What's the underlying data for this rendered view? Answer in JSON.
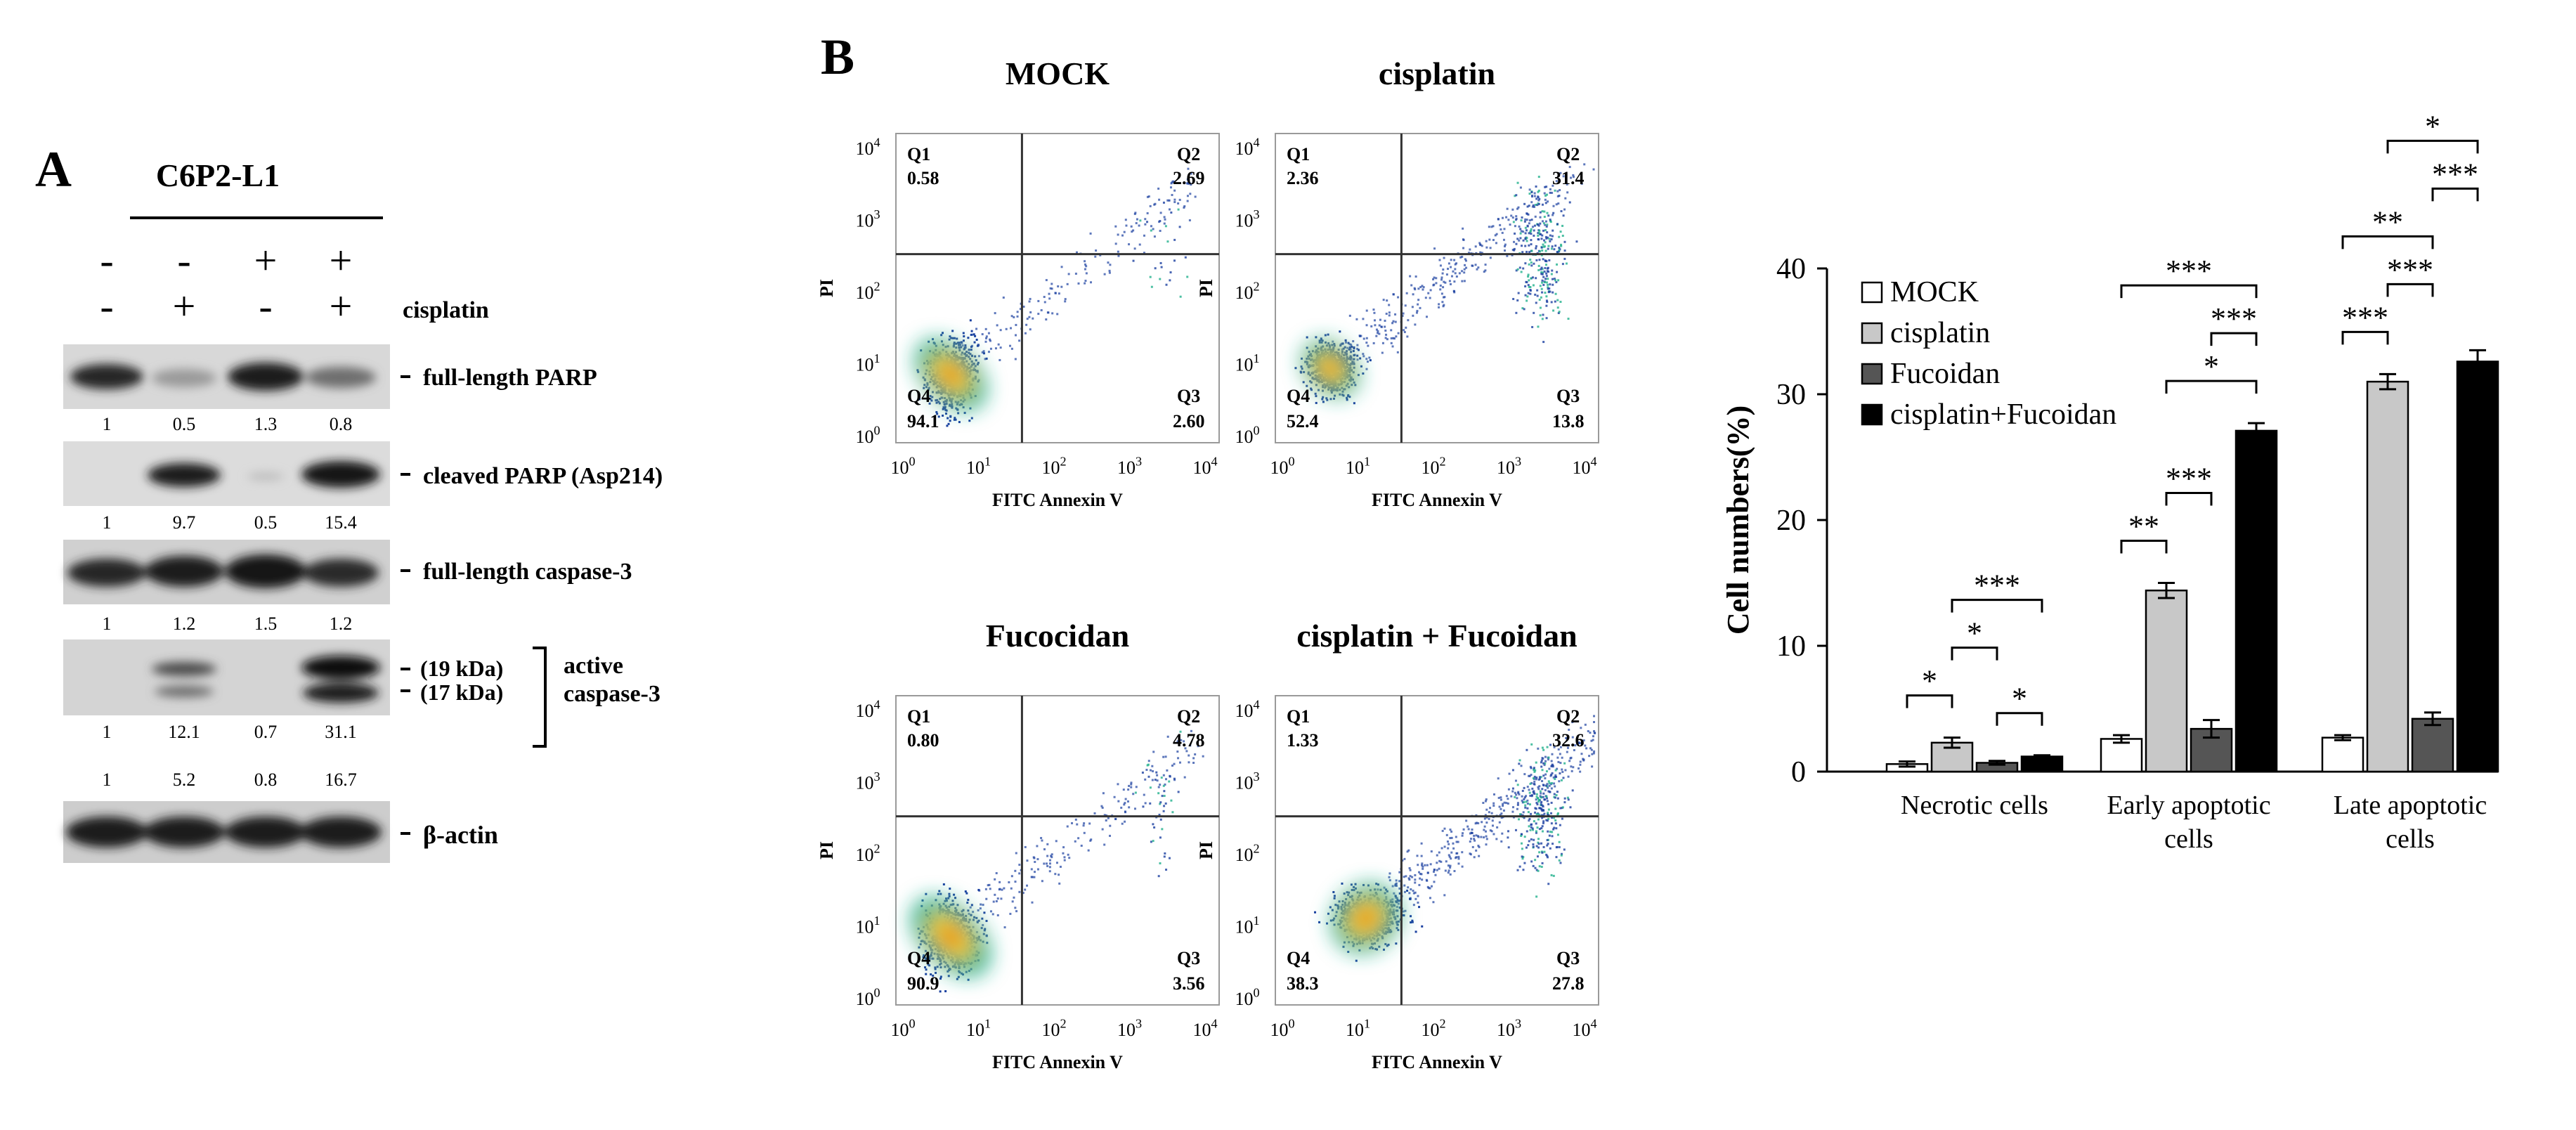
{
  "figure": {
    "panel_a": {
      "letter": "A",
      "cell_line": "C6P2-L1",
      "treatment_rows": [
        {
          "signs": [
            "-",
            "-",
            "+",
            "+"
          ],
          "label": ""
        },
        {
          "signs": [
            "-",
            "+",
            "-",
            "+"
          ],
          "label": "cisplatin"
        }
      ],
      "blots": [
        {
          "label": "full-length PARP",
          "quant": [
            "1",
            "0.5",
            "1.3",
            "0.8"
          ]
        },
        {
          "label": "cleaved PARP (Asp214)",
          "quant": [
            "1",
            "9.7",
            "0.5",
            "15.4"
          ]
        },
        {
          "label": "full-length caspase-3",
          "quant": [
            "1",
            "1.2",
            "1.5",
            "1.2"
          ]
        },
        {
          "label": "",
          "quant": [
            "1",
            "12.1",
            "0.7",
            "31.1"
          ],
          "quant2": [
            "1",
            "5.2",
            "0.8",
            "16.7"
          ],
          "size_labels": [
            "(19 kDa)",
            "(17 kDa)"
          ],
          "group_label": [
            "active",
            "caspase-3"
          ]
        },
        {
          "label": "β‑actin"
        }
      ]
    },
    "panel_b": {
      "letter": "B",
      "plots": [
        {
          "title": "MOCK",
          "q1": "0.58",
          "q2": "2.69",
          "q3": "2.60",
          "q4": "94.1"
        },
        {
          "title": "cisplatin",
          "q1": "2.36",
          "q2": "31.4",
          "q3": "13.8",
          "q4": "52.4"
        },
        {
          "title": "Fucocidan",
          "q1": "0.80",
          "q2": "4.78",
          "q3": "3.56",
          "q4": "90.9"
        },
        {
          "title": "cisplatin + Fucoidan",
          "q1": "1.33",
          "q2": "32.6",
          "q3": "27.8",
          "q4": "38.3"
        }
      ],
      "x_axis_label": "FITC Annexin V",
      "y_axis_label": "PI",
      "tick_labels": {
        "base": "10",
        "exponents": [
          "0",
          "1",
          "2",
          "3",
          "4"
        ]
      },
      "quadrant_labels": [
        "Q1",
        "Q2",
        "Q3",
        "Q4"
      ]
    },
    "colors": {
      "gate": "#333333",
      "dot_sparse": "#1a3fa0",
      "dot_dense": "#20b08c",
      "hot_core": "#f2d21e",
      "hot_center": "#e0561e"
    }
  },
  "chart_data": {
    "type": "bar",
    "title": "",
    "ylabel": "Cell numbers(%)",
    "xlabel": "",
    "ylim": [
      0,
      40
    ],
    "yticks": [
      0,
      10,
      20,
      30,
      40
    ],
    "categories": [
      "Necrotic cells",
      "Early apoptotic\ncells",
      "Late apoptotic\ncells"
    ],
    "series": [
      {
        "name": "MOCK",
        "values": [
          0.6,
          2.6,
          2.7
        ],
        "errors": [
          0.2,
          0.3,
          0.2
        ],
        "color": "#ffffff"
      },
      {
        "name": "cisplatin",
        "values": [
          2.3,
          14.4,
          31.0
        ],
        "errors": [
          0.4,
          0.6,
          0.6
        ],
        "color": "#c8c8c8"
      },
      {
        "name": "Fucoidan",
        "values": [
          0.7,
          3.4,
          4.2
        ],
        "errors": [
          0.15,
          0.7,
          0.5
        ],
        "color": "#555555"
      },
      {
        "name": "cisplatin+Fucoidan",
        "values": [
          1.2,
          27.1,
          32.6
        ],
        "errors": [
          0.1,
          0.6,
          0.9
        ],
        "color": "#000000"
      }
    ],
    "legend": "top-left",
    "significance": [
      {
        "category": 0,
        "from": 0,
        "to": 1,
        "label": "*"
      },
      {
        "category": 0,
        "from": 1,
        "to": 2,
        "label": "*"
      },
      {
        "category": 0,
        "from": 2,
        "to": 3,
        "label": "*"
      },
      {
        "category": 0,
        "from": 1,
        "to": 3,
        "label": "***"
      },
      {
        "category": 1,
        "from": 0,
        "to": 1,
        "label": "**"
      },
      {
        "category": 1,
        "from": 1,
        "to": 2,
        "label": "***"
      },
      {
        "category": 1,
        "from": 1,
        "to": 3,
        "label": "*"
      },
      {
        "category": 1,
        "from": 2,
        "to": 3,
        "label": "***"
      },
      {
        "category": 1,
        "from": 0,
        "to": 3,
        "label": "***"
      },
      {
        "category": 2,
        "from": 0,
        "to": 1,
        "label": "***"
      },
      {
        "category": 2,
        "from": 1,
        "to": 2,
        "label": "***"
      },
      {
        "category": 2,
        "from": 0,
        "to": 2,
        "label": "**"
      },
      {
        "category": 2,
        "from": 2,
        "to": 3,
        "label": "***"
      },
      {
        "category": 2,
        "from": 1,
        "to": 3,
        "label": "*"
      }
    ]
  }
}
